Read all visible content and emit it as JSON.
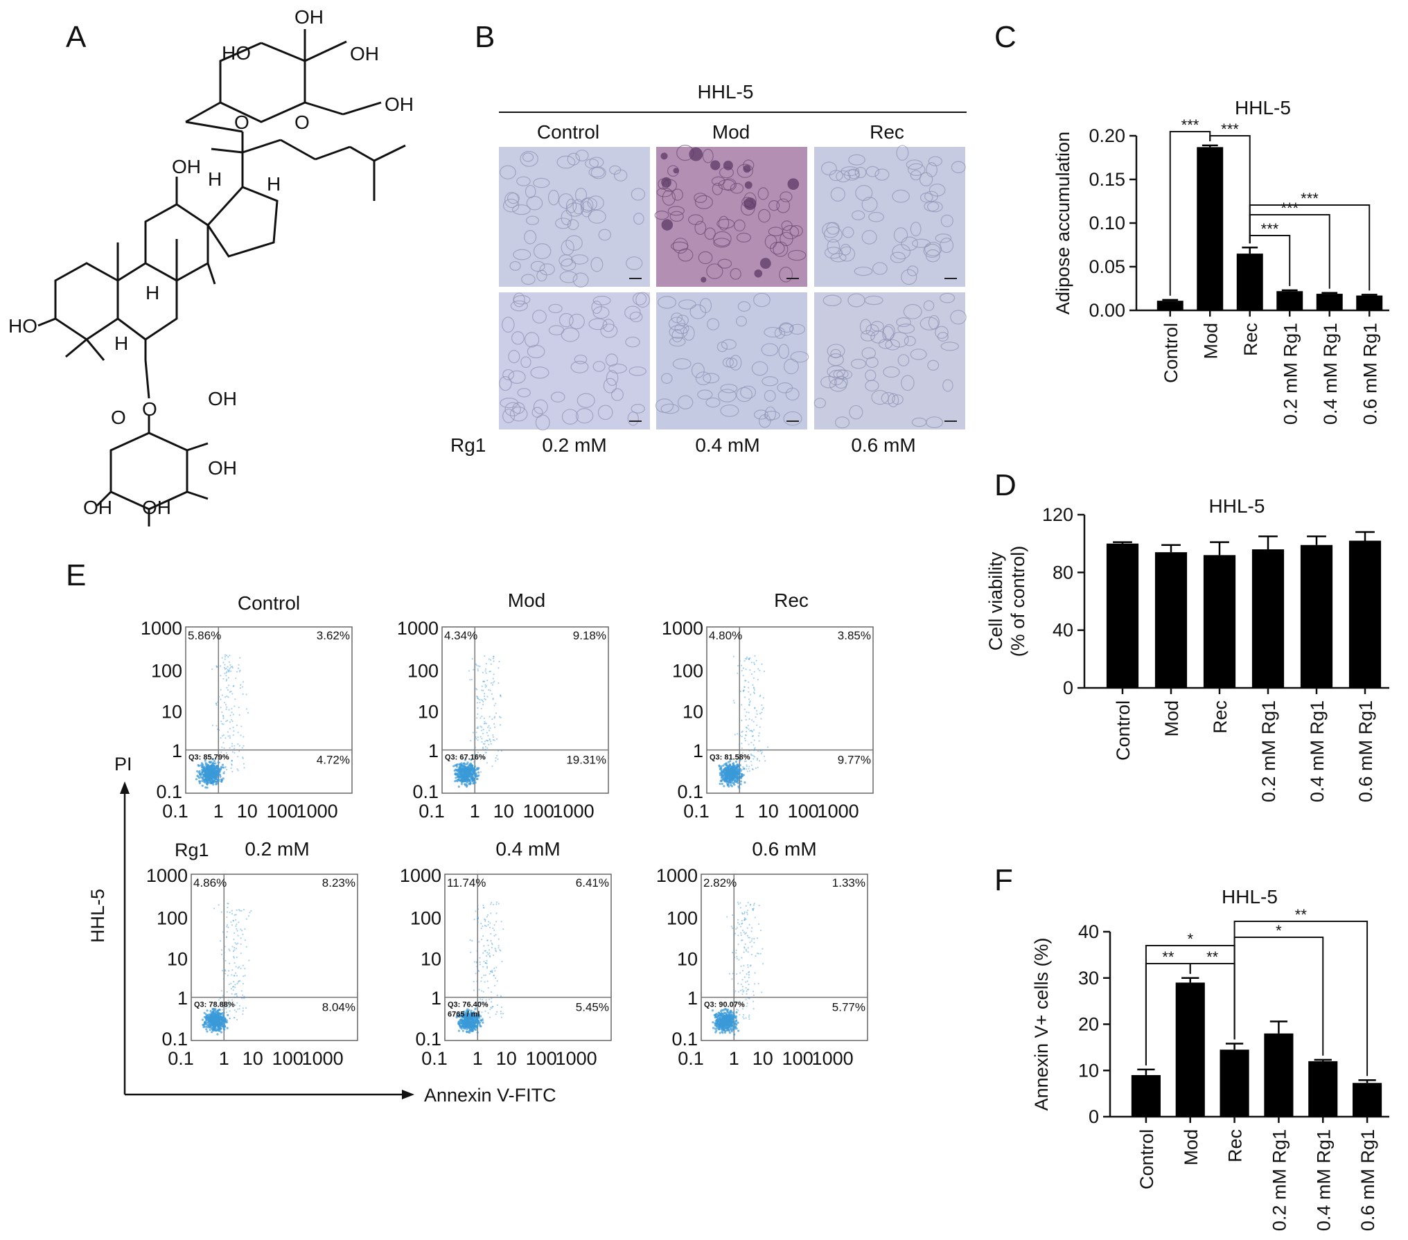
{
  "panel_letters": {
    "a": "A",
    "b": "B",
    "c": "C",
    "d": "D",
    "e": "E",
    "f": "F"
  },
  "molecule_labels": {
    "oh": "OH",
    "ho": "HO",
    "h": "H",
    "o": "O"
  },
  "panel_b": {
    "header": "HHL-5",
    "columns": [
      "Control",
      "Mod",
      "Rec"
    ],
    "row_label": "Rg1",
    "doses": [
      "0.2 mM",
      "0.4 mM",
      "0.6 mM"
    ],
    "images_note_colors": {
      "normal": "#c7cbe2",
      "stained": "#b992b6"
    }
  },
  "chart_data": [
    {
      "panel": "C",
      "type": "bar",
      "title": "HHL-5",
      "ylabel": "Adipose accumulation",
      "categories": [
        "Control",
        "Mod",
        "Rec",
        "0.2 mM Rg1",
        "0.4 mM Rg1",
        "0.6 mM Rg1"
      ],
      "values": [
        0.011,
        0.187,
        0.065,
        0.022,
        0.019,
        0.017
      ],
      "errors": [
        0.001,
        0.002,
        0.007,
        0.001,
        0.001,
        0.001
      ],
      "ylim": [
        0,
        0.2
      ],
      "yticks": [
        "0.00",
        "0.05",
        "0.10",
        "0.15",
        "0.20"
      ],
      "significance": [
        {
          "from": 0,
          "to": 1,
          "label": "***"
        },
        {
          "from": 1,
          "to": 2,
          "label": "***"
        },
        {
          "from": 2,
          "to": 3,
          "label": "***"
        },
        {
          "from": 2,
          "to": 4,
          "label": "***"
        },
        {
          "from": 2,
          "to": 5,
          "label": "***"
        }
      ]
    },
    {
      "panel": "D",
      "type": "bar",
      "title": "HHL-5",
      "ylabel": "Cell viability\n(% of control)",
      "categories": [
        "Control",
        "Mod",
        "Rec",
        "0.2 mM Rg1",
        "0.4 mM Rg1",
        "0.6 mM Rg1"
      ],
      "values": [
        100,
        94,
        92,
        96,
        99,
        102
      ],
      "errors": [
        1,
        5,
        9,
        9,
        6,
        6
      ],
      "ylim": [
        0,
        120
      ],
      "yticks": [
        "0",
        "40",
        "80",
        "120"
      ]
    },
    {
      "panel": "F",
      "type": "bar",
      "title": "HHL-5",
      "ylabel": "Annexin V+ cells (%)",
      "categories": [
        "Control",
        "Mod",
        "Rec",
        "0.2 mM Rg1",
        "0.4 mM Rg1",
        "0.6 mM Rg1"
      ],
      "values": [
        9,
        29,
        14.5,
        18,
        12,
        7.3
      ],
      "errors": [
        1.2,
        1.0,
        1.3,
        2.6,
        0.3,
        0.6
      ],
      "ylim": [
        0,
        40
      ],
      "yticks": [
        "0",
        "10",
        "20",
        "30",
        "40"
      ],
      "significance": [
        {
          "from": 0,
          "to": 1,
          "label": "**"
        },
        {
          "from": 1,
          "to": 2,
          "label": "**"
        },
        {
          "from": 0,
          "to": 2,
          "label": "*"
        },
        {
          "from": 2,
          "to": 4,
          "label": "*"
        },
        {
          "from": 2,
          "to": 5,
          "label": "**"
        }
      ]
    },
    {
      "panel": "E",
      "type": "scatter",
      "title": "",
      "xlabel": "Annexin V-FITC",
      "ylabel": "PI",
      "side_label": "HHL-5",
      "row_label": "Rg1",
      "ticks": [
        "0.1",
        "1",
        "10",
        "100",
        "1000"
      ],
      "plots": [
        {
          "title": "Control",
          "q1": "5.86%",
          "q2": "3.62%",
          "q3": "Q3: 85.79%",
          "q4": "4.72%",
          "note": ""
        },
        {
          "title": "Mod",
          "q1": "4.34%",
          "q2": "9.18%",
          "q3": "Q3: 67.16%",
          "q4": "19.31%",
          "note": ""
        },
        {
          "title": "Rec",
          "q1": "4.80%",
          "q2": "3.85%",
          "q3": "Q3: 81.58%",
          "q4": "9.77%",
          "note": ""
        },
        {
          "title": "0.2 mM",
          "q1": "4.86%",
          "q2": "8.23%",
          "q3": "Q3: 78.88%",
          "q4": "8.04%",
          "note": ""
        },
        {
          "title": "0.4 mM",
          "q1": "11.74%",
          "q2": "6.41%",
          "q3": "Q3: 76.40%",
          "q4": "5.45%",
          "note": "6765 / ml"
        },
        {
          "title": "0.6 mM",
          "q1": "2.82%",
          "q2": "1.33%",
          "q3": "Q3: 90.07%",
          "q4": "5.77%",
          "note": ""
        }
      ],
      "dot_color": "#3a9ad9"
    }
  ]
}
